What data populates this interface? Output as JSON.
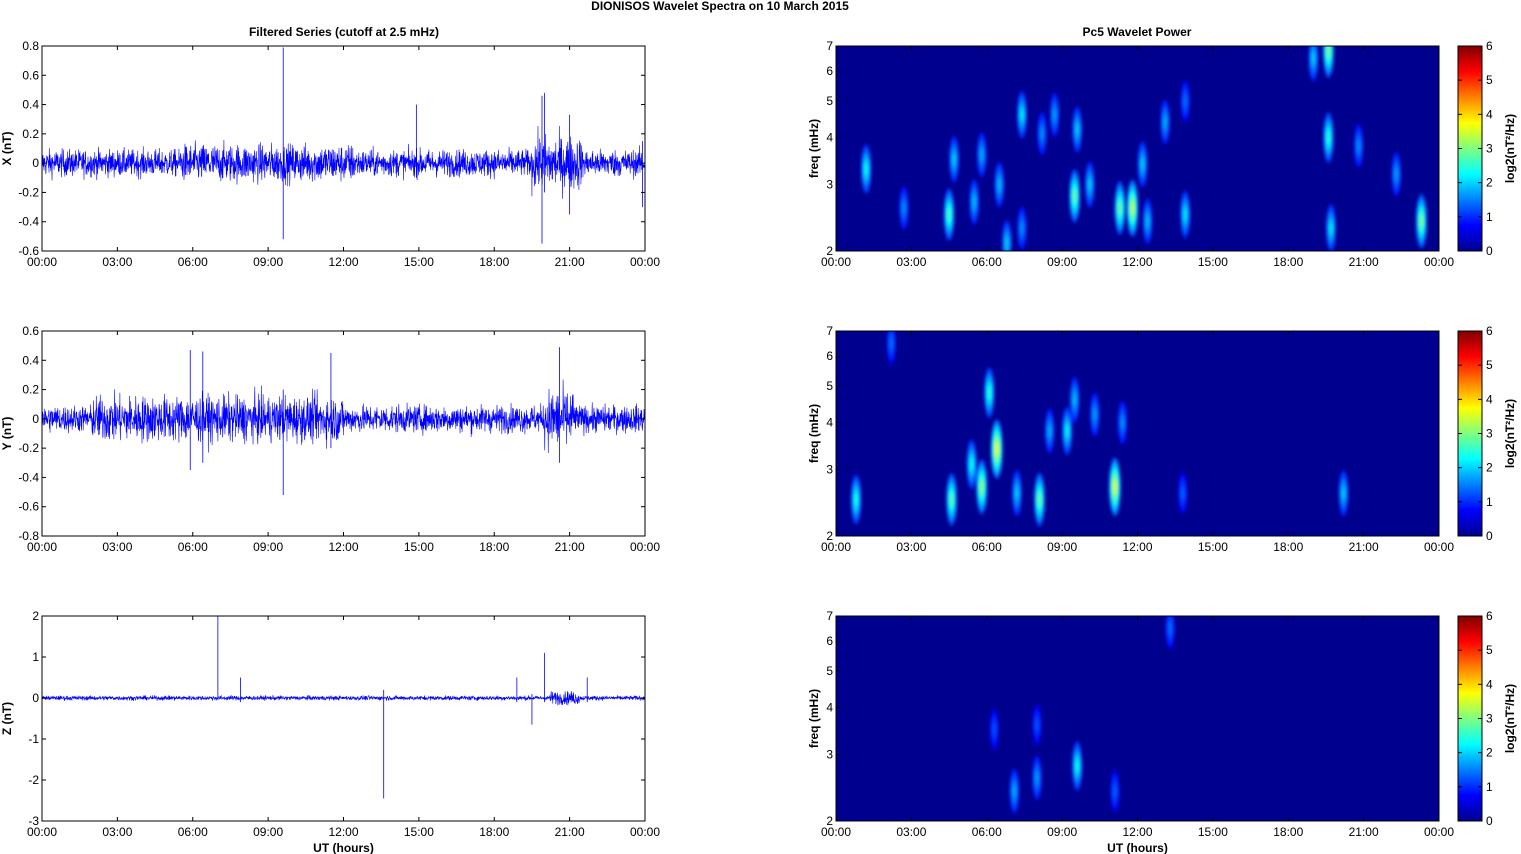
{
  "figure": {
    "title": "DIONISOS Wavelet Spectra on 10 March     2015",
    "left_title": "Filtered Series (cutoff at 2.5 mHz)",
    "right_title": "Pc5 Wavelet Power",
    "xlabel": "UT (hours)"
  },
  "colors": {
    "trace": "#0000ff",
    "background_low": "#00008f"
  },
  "chart_data": [
    {
      "type": "line",
      "component": "X",
      "ylabel": "X (nT)",
      "ylim": [
        -0.6,
        0.8
      ],
      "yticks": [
        "-0.6",
        "-0.4",
        "-0.2",
        "0",
        "0.2",
        "0.4",
        "0.6",
        "0.8"
      ],
      "xticks": [
        "00:00",
        "03:00",
        "06:00",
        "09:00",
        "12:00",
        "15:00",
        "18:00",
        "21:00",
        "00:00"
      ],
      "xlim_hours": [
        0,
        24
      ],
      "noise_envelope": [
        {
          "from": 0,
          "to": 24,
          "amp": 0.1
        },
        {
          "from": 5.5,
          "to": 12.5,
          "amp": 0.14
        },
        {
          "from": 19.5,
          "to": 21.5,
          "amp": 0.2
        }
      ],
      "spikes": [
        {
          "t": 9.6,
          "min": -0.52,
          "max": 0.79
        },
        {
          "t": 14.9,
          "min": -0.1,
          "max": 0.4
        },
        {
          "t": 19.9,
          "min": -0.55,
          "max": 0.46
        },
        {
          "t": 20.0,
          "min": -0.2,
          "max": 0.48
        },
        {
          "t": 21.0,
          "min": -0.35,
          "max": 0.33
        },
        {
          "t": 23.9,
          "min": -0.3,
          "max": 0.15
        }
      ]
    },
    {
      "type": "line",
      "component": "Y",
      "ylabel": "Y (nT)",
      "ylim": [
        -0.8,
        0.6
      ],
      "yticks": [
        "-0.8",
        "-0.6",
        "-0.4",
        "-0.2",
        "0",
        "0.2",
        "0.4",
        "0.6"
      ],
      "xticks": [
        "00:00",
        "03:00",
        "06:00",
        "09:00",
        "12:00",
        "15:00",
        "18:00",
        "21:00",
        "00:00"
      ],
      "xlim_hours": [
        0,
        24
      ],
      "noise_envelope": [
        {
          "from": 0,
          "to": 24,
          "amp": 0.1
        },
        {
          "from": 2,
          "to": 12,
          "amp": 0.17
        },
        {
          "from": 20,
          "to": 21.2,
          "amp": 0.22
        }
      ],
      "spikes": [
        {
          "t": 5.9,
          "min": -0.35,
          "max": 0.47
        },
        {
          "t": 6.4,
          "min": -0.3,
          "max": 0.46
        },
        {
          "t": 9.6,
          "min": -0.52,
          "max": 0.2
        },
        {
          "t": 11.5,
          "min": -0.2,
          "max": 0.45
        },
        {
          "t": 20.6,
          "min": -0.3,
          "max": 0.49
        }
      ]
    },
    {
      "type": "line",
      "component": "Z",
      "ylabel": "Z (nT)",
      "ylim": [
        -3,
        2
      ],
      "yticks": [
        "-3",
        "-2",
        "-1",
        "0",
        "1",
        "2"
      ],
      "xticks": [
        "00:00",
        "03:00",
        "06:00",
        "09:00",
        "12:00",
        "15:00",
        "18:00",
        "21:00",
        "00:00"
      ],
      "xlabel": "UT (hours)",
      "xlim_hours": [
        0,
        24
      ],
      "noise_envelope": [
        {
          "from": 0,
          "to": 24,
          "amp": 0.06
        },
        {
          "from": 20.2,
          "to": 21.4,
          "amp": 0.18
        }
      ],
      "spikes": [
        {
          "t": 7.0,
          "min": -0.05,
          "max": 2.0
        },
        {
          "t": 7.9,
          "min": -0.1,
          "max": 0.5
        },
        {
          "t": 13.6,
          "min": -2.45,
          "max": 0.2
        },
        {
          "t": 18.9,
          "min": -0.1,
          "max": 0.5
        },
        {
          "t": 19.5,
          "min": -0.65,
          "max": 0.1
        },
        {
          "t": 20.0,
          "min": -0.1,
          "max": 1.1
        },
        {
          "t": 21.7,
          "min": -0.1,
          "max": 0.5
        }
      ]
    },
    {
      "type": "heatmap",
      "component": "X",
      "ylabel": "freq (mHz)",
      "yscale": "log",
      "ylim_mhz": [
        2,
        7
      ],
      "yticks": [
        "2",
        "3",
        "4",
        "5",
        "6",
        "7"
      ],
      "xticks": [
        "00:00",
        "03:00",
        "06:00",
        "09:00",
        "12:00",
        "15:00",
        "18:00",
        "21:00",
        "00:00"
      ],
      "colorbar": {
        "label": "log2(nT²/Hz)",
        "range": [
          0,
          6
        ],
        "ticks": [
          "0",
          "1",
          "2",
          "3",
          "4",
          "5",
          "6"
        ]
      },
      "blobs": [
        {
          "t": 1.2,
          "f": 3.3,
          "p": 2.0
        },
        {
          "t": 2.7,
          "f": 2.6,
          "p": 1.2
        },
        {
          "t": 4.5,
          "f": 2.5,
          "p": 2.4
        },
        {
          "t": 4.7,
          "f": 3.5,
          "p": 1.6
        },
        {
          "t": 5.5,
          "f": 2.7,
          "p": 1.5
        },
        {
          "t": 5.8,
          "f": 3.6,
          "p": 1.4
        },
        {
          "t": 6.5,
          "f": 3.0,
          "p": 1.5
        },
        {
          "t": 6.8,
          "f": 2.1,
          "p": 1.6
        },
        {
          "t": 7.4,
          "f": 4.6,
          "p": 1.8
        },
        {
          "t": 7.4,
          "f": 2.3,
          "p": 1.2
        },
        {
          "t": 8.2,
          "f": 4.1,
          "p": 1.2
        },
        {
          "t": 8.7,
          "f": 4.6,
          "p": 1.3
        },
        {
          "t": 9.5,
          "f": 2.8,
          "p": 2.6
        },
        {
          "t": 9.6,
          "f": 4.2,
          "p": 1.6
        },
        {
          "t": 10.1,
          "f": 3.0,
          "p": 1.6
        },
        {
          "t": 11.3,
          "f": 2.6,
          "p": 2.6
        },
        {
          "t": 11.8,
          "f": 2.6,
          "p": 3.1
        },
        {
          "t": 12.2,
          "f": 3.4,
          "p": 1.6
        },
        {
          "t": 12.4,
          "f": 2.4,
          "p": 1.5
        },
        {
          "t": 13.1,
          "f": 4.4,
          "p": 1.4
        },
        {
          "t": 13.9,
          "f": 2.5,
          "p": 1.8
        },
        {
          "t": 13.9,
          "f": 5.0,
          "p": 1.0
        },
        {
          "t": 19.0,
          "f": 6.5,
          "p": 1.6
        },
        {
          "t": 19.6,
          "f": 6.8,
          "p": 2.7
        },
        {
          "t": 19.6,
          "f": 4.0,
          "p": 2.2
        },
        {
          "t": 19.7,
          "f": 2.3,
          "p": 1.8
        },
        {
          "t": 20.8,
          "f": 3.8,
          "p": 1.2
        },
        {
          "t": 22.3,
          "f": 3.2,
          "p": 1.3
        },
        {
          "t": 23.3,
          "f": 2.4,
          "p": 2.7
        }
      ]
    },
    {
      "type": "heatmap",
      "component": "Y",
      "ylabel": "freq (mHz)",
      "yscale": "log",
      "ylim_mhz": [
        2,
        7
      ],
      "yticks": [
        "2",
        "3",
        "4",
        "5",
        "6",
        "7"
      ],
      "xticks": [
        "00:00",
        "03:00",
        "06:00",
        "09:00",
        "12:00",
        "15:00",
        "18:00",
        "21:00",
        "00:00"
      ],
      "colorbar": {
        "label": "log2(nT²/Hz)",
        "range": [
          0,
          6
        ],
        "ticks": [
          "0",
          "1",
          "2",
          "3",
          "4",
          "5",
          "6"
        ]
      },
      "blobs": [
        {
          "t": 0.8,
          "f": 2.5,
          "p": 2.1
        },
        {
          "t": 2.2,
          "f": 6.5,
          "p": 1.0
        },
        {
          "t": 4.6,
          "f": 2.5,
          "p": 2.5
        },
        {
          "t": 5.4,
          "f": 3.1,
          "p": 2.0
        },
        {
          "t": 5.8,
          "f": 2.7,
          "p": 2.8
        },
        {
          "t": 6.1,
          "f": 4.8,
          "p": 2.2
        },
        {
          "t": 6.4,
          "f": 3.4,
          "p": 3.4
        },
        {
          "t": 7.2,
          "f": 2.6,
          "p": 1.6
        },
        {
          "t": 8.1,
          "f": 2.5,
          "p": 2.6
        },
        {
          "t": 8.5,
          "f": 3.8,
          "p": 1.4
        },
        {
          "t": 9.2,
          "f": 3.8,
          "p": 1.9
        },
        {
          "t": 9.5,
          "f": 4.6,
          "p": 1.5
        },
        {
          "t": 10.3,
          "f": 4.2,
          "p": 1.3
        },
        {
          "t": 11.1,
          "f": 2.7,
          "p": 3.3
        },
        {
          "t": 11.4,
          "f": 4.0,
          "p": 1.2
        },
        {
          "t": 13.8,
          "f": 2.6,
          "p": 0.9
        },
        {
          "t": 20.2,
          "f": 2.6,
          "p": 1.6
        }
      ]
    },
    {
      "type": "heatmap",
      "component": "Z",
      "ylabel": "freq (mHz)",
      "yscale": "log",
      "ylim_mhz": [
        2,
        7
      ],
      "yticks": [
        "2",
        "3",
        "4",
        "5",
        "6",
        "7"
      ],
      "xticks": [
        "00:00",
        "03:00",
        "06:00",
        "09:00",
        "12:00",
        "15:00",
        "18:00",
        "21:00",
        "00:00"
      ],
      "xlabel": "UT (hours)",
      "colorbar": {
        "label": "log2(nT²/Hz)",
        "range": [
          0,
          6
        ],
        "ticks": [
          "0",
          "1",
          "2",
          "3",
          "4",
          "5",
          "6"
        ]
      },
      "blobs": [
        {
          "t": 6.3,
          "f": 3.5,
          "p": 0.8
        },
        {
          "t": 7.1,
          "f": 2.4,
          "p": 1.4
        },
        {
          "t": 8.0,
          "f": 2.6,
          "p": 1.3
        },
        {
          "t": 8.0,
          "f": 3.6,
          "p": 0.8
        },
        {
          "t": 9.6,
          "f": 2.8,
          "p": 2.0
        },
        {
          "t": 11.1,
          "f": 2.4,
          "p": 0.9
        },
        {
          "t": 13.3,
          "f": 6.5,
          "p": 1.0
        }
      ]
    }
  ]
}
